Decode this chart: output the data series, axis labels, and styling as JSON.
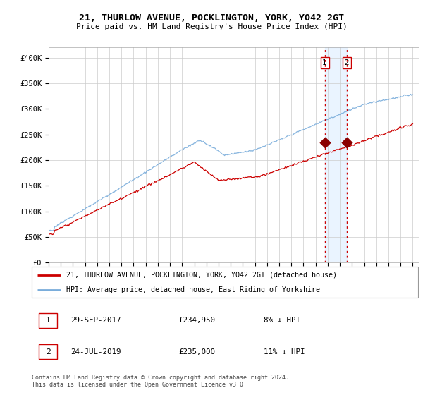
{
  "title": "21, THURLOW AVENUE, POCKLINGTON, YORK, YO42 2GT",
  "subtitle": "Price paid vs. HM Land Registry's House Price Index (HPI)",
  "legend_line1": "21, THURLOW AVENUE, POCKLINGTON, YORK, YO42 2GT (detached house)",
  "legend_line2": "HPI: Average price, detached house, East Riding of Yorkshire",
  "footer": "Contains HM Land Registry data © Crown copyright and database right 2024.\nThis data is licensed under the Open Government Licence v3.0.",
  "sale1_date": "29-SEP-2017",
  "sale1_price": "£234,950",
  "sale1_hpi": "8% ↓ HPI",
  "sale2_date": "24-JUL-2019",
  "sale2_price": "£235,000",
  "sale2_hpi": "11% ↓ HPI",
  "sale1_year": 2017.75,
  "sale1_value": 234950,
  "sale2_year": 2019.56,
  "sale2_value": 235000,
  "hpi_color": "#7aaddb",
  "price_color": "#cc0000",
  "marker_color": "#8b0000",
  "ylim": [
    0,
    420000
  ],
  "yticks": [
    0,
    50000,
    100000,
    150000,
    200000,
    250000,
    300000,
    350000,
    400000
  ],
  "ytick_labels": [
    "£0",
    "£50K",
    "£100K",
    "£150K",
    "£200K",
    "£250K",
    "£300K",
    "£350K",
    "£400K"
  ],
  "background_color": "#ffffff",
  "grid_color": "#cccccc",
  "vline_color": "#cc0000",
  "shade_color": "#ddeeff"
}
